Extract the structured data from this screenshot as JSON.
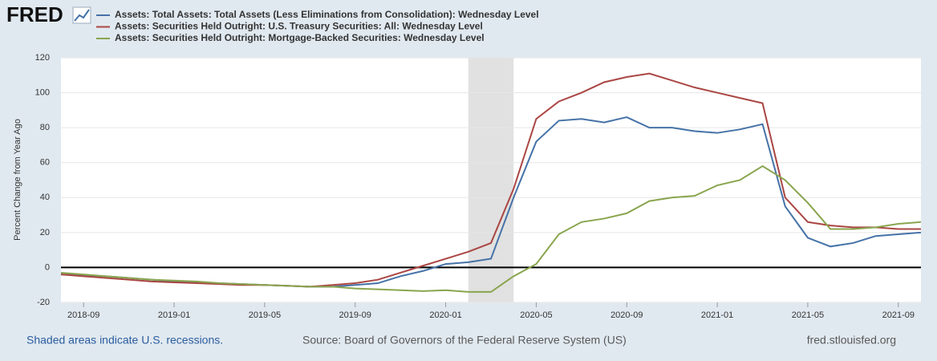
{
  "chart_data": {
    "type": "line",
    "logo": "FRED",
    "ylabel": "Percent Change from Year Ago",
    "x": [
      "2018-08",
      "2018-09",
      "2018-10",
      "2018-11",
      "2018-12",
      "2019-01",
      "2019-02",
      "2019-03",
      "2019-04",
      "2019-05",
      "2019-06",
      "2019-07",
      "2019-08",
      "2019-09",
      "2019-10",
      "2019-11",
      "2019-12",
      "2020-01",
      "2020-02",
      "2020-03",
      "2020-04",
      "2020-05",
      "2020-06",
      "2020-07",
      "2020-08",
      "2020-09",
      "2020-10",
      "2020-11",
      "2020-12",
      "2021-01",
      "2021-02",
      "2021-03",
      "2021-04",
      "2021-05",
      "2021-06",
      "2021-07",
      "2021-08",
      "2021-09",
      "2021-10"
    ],
    "series": [
      {
        "name": "Assets: Total Assets: Total Assets (Less Eliminations from Consolidation): Wednesday Level",
        "color": "#4572a7",
        "values": [
          -4,
          -4.5,
          -5,
          -6,
          -7,
          -8,
          -8.5,
          -9,
          -9.5,
          -10,
          -10.5,
          -11,
          -11,
          -10,
          -9,
          -5,
          -2,
          2,
          3,
          5,
          40,
          72,
          84,
          85,
          83,
          86,
          80,
          80,
          78,
          77,
          79,
          82,
          35,
          17,
          12,
          14,
          18,
          19,
          20
        ]
      },
      {
        "name": "Assets: Securities Held Outright: U.S. Treasury Securities: All: Wednesday Level",
        "color": "#aa4643",
        "values": [
          -4,
          -5,
          -6,
          -7,
          -8,
          -8.5,
          -9,
          -9.5,
          -10,
          -10,
          -10.5,
          -11,
          -10,
          -9,
          -7,
          -3,
          1,
          5,
          9,
          14,
          45,
          85,
          95,
          100,
          106,
          109,
          111,
          107,
          103,
          100,
          97,
          94,
          40,
          26,
          24,
          23,
          23,
          22,
          22
        ]
      },
      {
        "name": "Assets: Securities Held Outright: Mortgage-Backed Securities: Wednesday Level",
        "color": "#89a54e",
        "values": [
          -3,
          -4,
          -5,
          -6,
          -7,
          -7.5,
          -8,
          -9,
          -9.5,
          -10,
          -10.5,
          -11,
          -11,
          -12,
          -12.5,
          -13,
          -13.5,
          -13,
          -14,
          -14,
          -5,
          2,
          19,
          26,
          28,
          31,
          38,
          40,
          41,
          47,
          50,
          58,
          50,
          37,
          22,
          22,
          23,
          25,
          26
        ]
      }
    ],
    "xlim": [
      "2018-08",
      "2021-10"
    ],
    "xticks": [
      "2018-09",
      "2019-01",
      "2019-05",
      "2019-09",
      "2020-01",
      "2020-05",
      "2020-09",
      "2021-01",
      "2021-05",
      "2021-09"
    ],
    "ylim": [
      -20,
      120
    ],
    "yticks": [
      -20,
      0,
      20,
      40,
      60,
      80,
      100,
      120
    ],
    "grid": true,
    "zero_line": true,
    "recessions": [
      {
        "start": "2020-02",
        "end": "2020-04",
        "color": "#e1e1e1"
      }
    ],
    "footer": {
      "note": "Shaded areas indicate U.S. recessions.",
      "source": "Source: Board of Governors of the Federal Reserve System (US)",
      "site": "fred.stlouisfed.org"
    }
  }
}
